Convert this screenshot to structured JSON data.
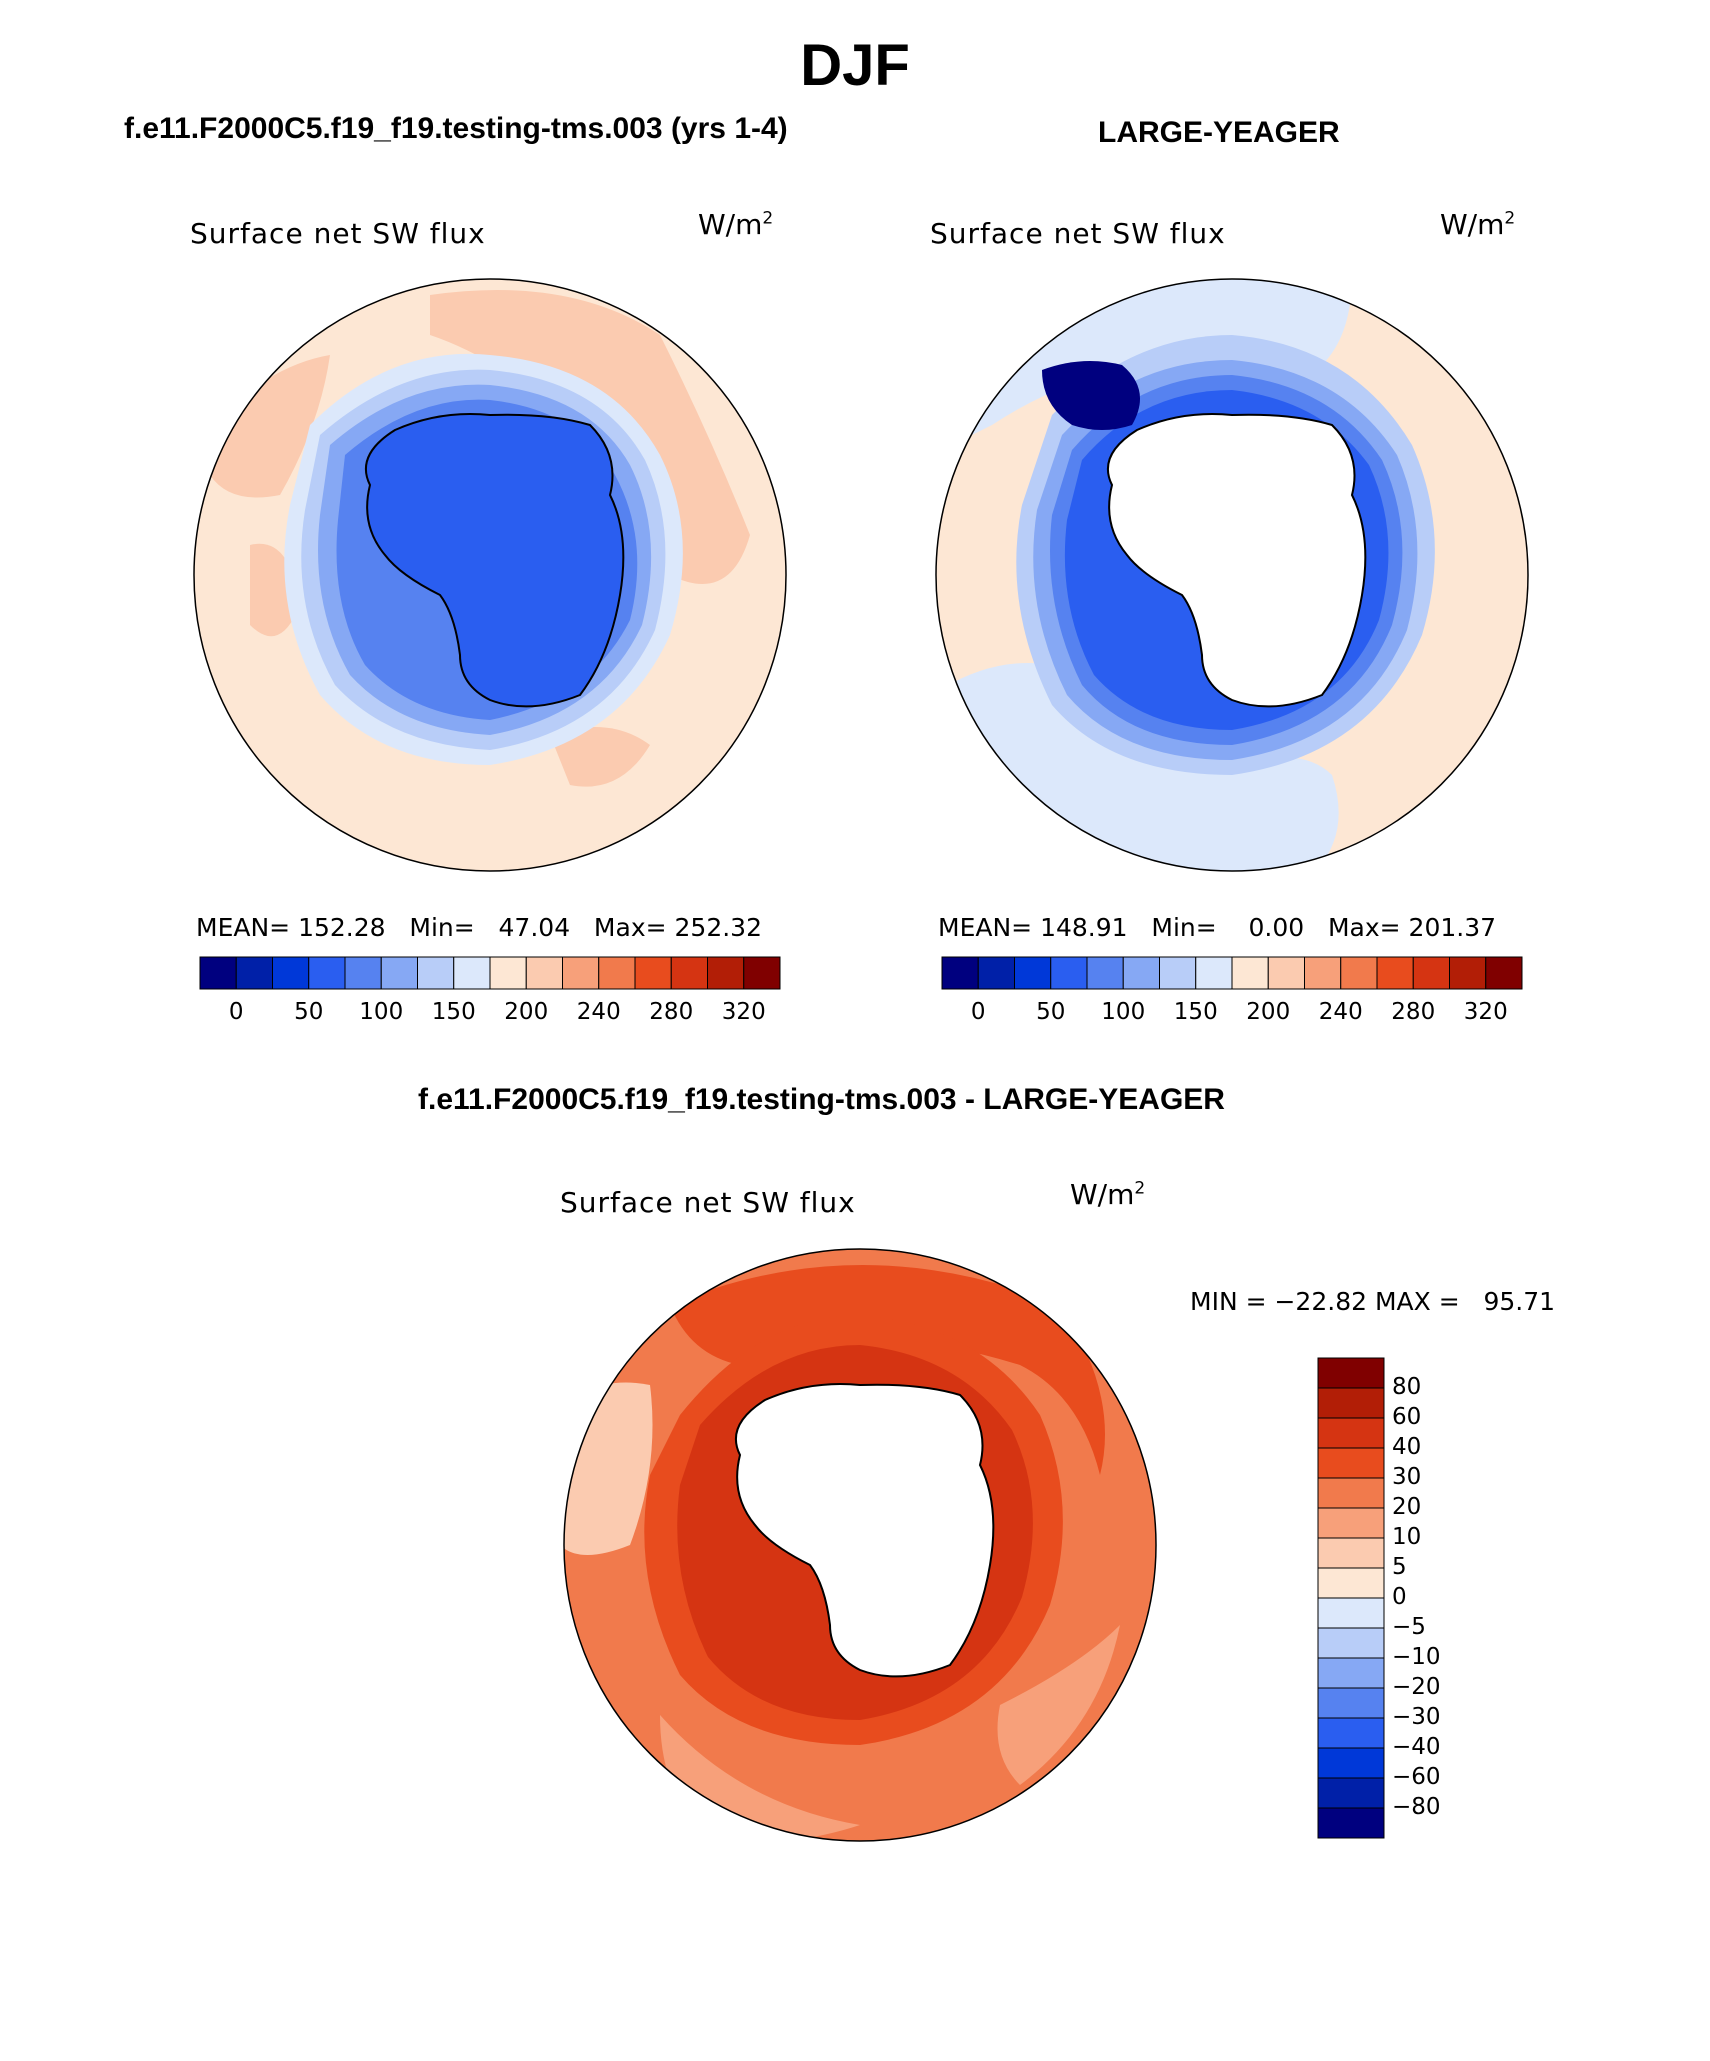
{
  "season": "DJF",
  "variable_label": "Surface net SW flux",
  "units_base": "W/m",
  "units_exp": "2",
  "panel_left": {
    "case_title": "f.e11.F2000C5.f19_f19.testing-tms.003 (yrs 1-4)",
    "stats": "MEAN= 152.28   Min=   47.04   Max= 252.32"
  },
  "panel_right": {
    "case_title": "LARGE-YEAGER",
    "stats": "MEAN= 148.91   Min=    0.00   Max= 201.37"
  },
  "panel_diff": {
    "case_title": "f.e11.F2000C5.f19_f19.testing-tms.003 - LARGE-YEAGER",
    "minmax": "MIN = −22.82 MAX =   95.71"
  },
  "colorbar_abs": {
    "colors": [
      "#00007f",
      "#0020a8",
      "#0038d8",
      "#2a5ef0",
      "#5682f0",
      "#86a8f4",
      "#b8cdf8",
      "#dce8fb",
      "#fde7d4",
      "#fbcbb0",
      "#f7a07a",
      "#f17a4c",
      "#e84c1e",
      "#d53412",
      "#b21e06",
      "#800000"
    ],
    "tick_labels": [
      "0",
      "50",
      "100",
      "150",
      "200",
      "240",
      "280",
      "320"
    ]
  },
  "colorbar_diff": {
    "colors": [
      "#800000",
      "#b21e06",
      "#d53412",
      "#e84c1e",
      "#f17a4c",
      "#f7a07a",
      "#fbcbb0",
      "#fde7d4",
      "#dce8fb",
      "#b8cdf8",
      "#86a8f4",
      "#5682f0",
      "#2a5ef0",
      "#0038d8",
      "#0020a8",
      "#00007f"
    ],
    "tick_labels": [
      "80",
      "60",
      "40",
      "30",
      "20",
      "10",
      "5",
      "0",
      "−5",
      "−10",
      "−20",
      "−30",
      "−40",
      "−60",
      "−80"
    ]
  }
}
